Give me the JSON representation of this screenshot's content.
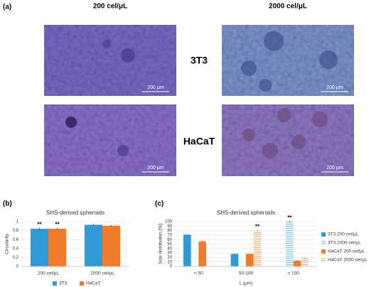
{
  "panel_a": {
    "label": "(a)",
    "columns": [
      "200 cel/μL",
      "2000 cel/μL"
    ],
    "rows": [
      "3T3",
      "HaCaT"
    ],
    "scale_bar": "200 μm"
  },
  "chart_data": [
    {
      "type": "bar",
      "label": "(b)",
      "title": "SHS-derived spheroids",
      "y_label": "Circularity",
      "categories": [
        "200 cel/μL",
        "2000 cel/μL"
      ],
      "series": [
        {
          "name": "3T3",
          "color": "#2e9bd6",
          "values": [
            0.84,
            0.93
          ],
          "errors": [
            0.03,
            0.03
          ],
          "marks": [
            "**",
            null
          ]
        },
        {
          "name": "HaCaT",
          "color": "#f07b2a",
          "values": [
            0.84,
            0.91
          ],
          "errors": [
            0.03,
            0.02
          ],
          "marks": [
            "**",
            null
          ]
        }
      ],
      "ylim": [
        0,
        1
      ],
      "yticks": [
        0,
        0.2,
        0.4,
        0.6,
        0.8,
        1
      ],
      "legend": "bottom"
    },
    {
      "type": "bar",
      "label": "(c)",
      "title": "SHS-derived spheroids",
      "y_label": "Size distribution [%]",
      "x_label": "L (μm)",
      "categories": [
        "< 50",
        "50-100",
        "> 100"
      ],
      "series": [
        {
          "name": "3T3 200 cel/μL",
          "color": "#2e9bd6",
          "values": [
            71,
            28,
            0
          ],
          "errors": [
            1,
            1,
            0
          ],
          "marks": [
            null,
            null,
            null
          ]
        },
        {
          "name": "3T3 2000 cel/μL",
          "color": "#2e9bd6",
          "pattern": "hatched",
          "values": [
            0,
            0,
            100
          ],
          "errors": [
            0,
            0,
            2
          ],
          "marks": [
            null,
            null,
            "**"
          ]
        },
        {
          "name": "HaCaT 200 cel/μL",
          "color": "#f07b2a",
          "values": [
            56,
            28,
            13
          ],
          "errors": [
            1,
            1,
            1
          ],
          "marks": [
            null,
            null,
            null
          ]
        },
        {
          "name": "HaCaT 2000 cel/μL",
          "color": "#f07b2a",
          "pattern": "hatched",
          "values": [
            0,
            80,
            19
          ],
          "errors": [
            0,
            2,
            1
          ],
          "marks": [
            null,
            "**",
            null
          ]
        }
      ],
      "ylim": [
        0,
        100
      ],
      "yticks": [
        0,
        10,
        20,
        30,
        40,
        50,
        60,
        70,
        80,
        90,
        100
      ],
      "legend": "right"
    }
  ]
}
